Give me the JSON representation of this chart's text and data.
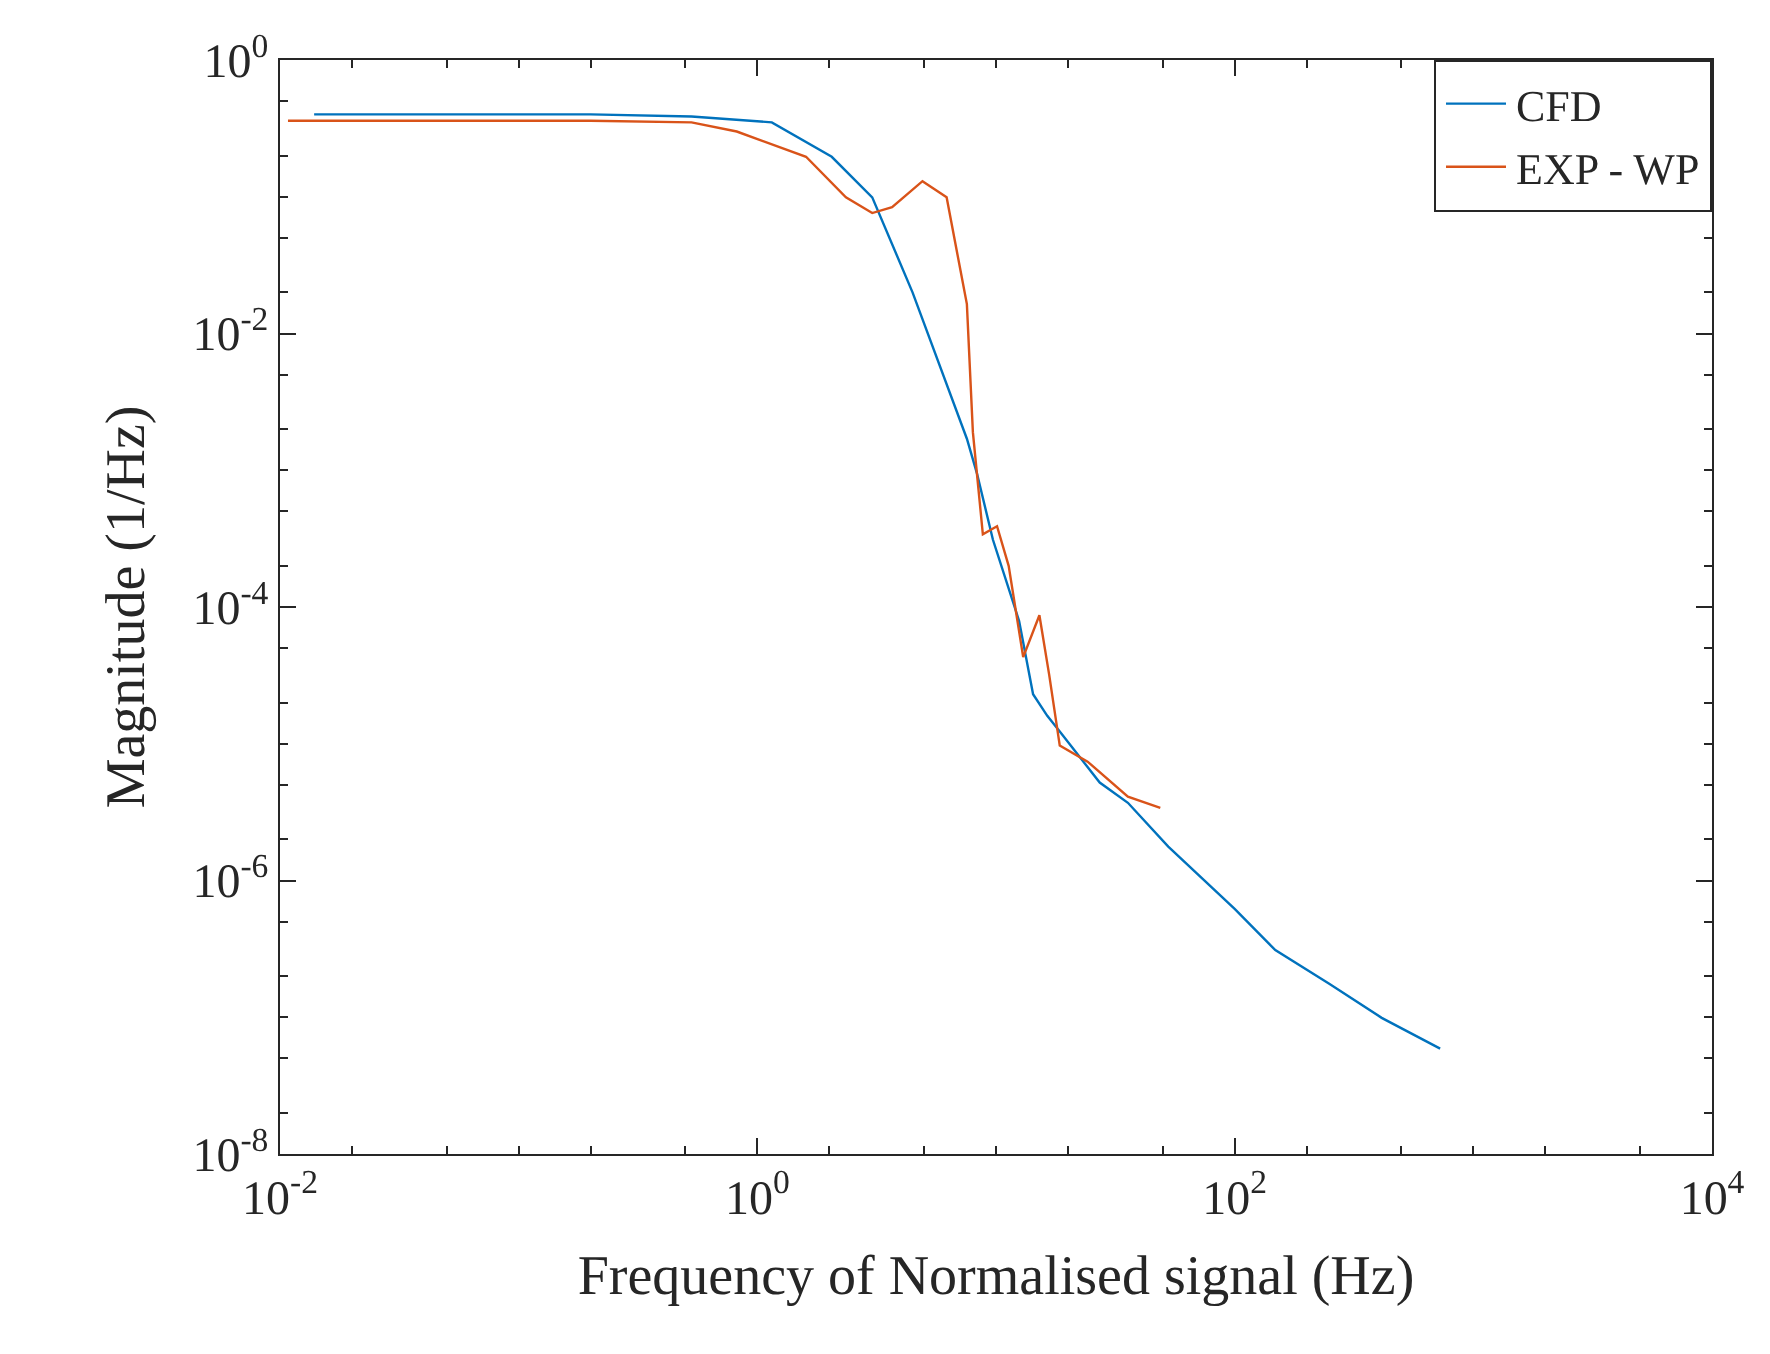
{
  "chart_data": {
    "type": "line",
    "xlabel": "Frequency of Normalised signal (Hz)",
    "ylabel": "Magnitude (1/Hz)",
    "log": "xy",
    "legend": "top right",
    "marker": "none",
    "line_style": "solid",
    "xlim": [
      0.01,
      10000
    ],
    "ylim": [
      1e-08,
      1
    ],
    "xticks": [
      {
        "value": 0.01,
        "label": "10$^{-2}$"
      },
      {
        "value": 1,
        "label": "10$^{0}$"
      },
      {
        "value": 100,
        "label": "10$^{2}$"
      },
      {
        "value": 10000,
        "label": "10$^{4}$"
      }
    ],
    "yticks": [
      {
        "value": 1e-08,
        "label": "10$^{-8}$"
      },
      {
        "value": 1e-06,
        "label": "10$^{-6}$"
      },
      {
        "value": 0.0001,
        "label": "10$^{-4}$"
      },
      {
        "value": 0.01,
        "label": "10$^{-2}$"
      },
      {
        "value": 1,
        "label": "10$^{0}$"
      }
    ],
    "series": [
      {
        "name": "CFD",
        "color": "#0072bd",
        "x": [
          0.0139,
          0.2,
          0.53,
          1.15,
          2.05,
          3.03,
          4.47,
          7.55,
          8.32,
          9.71,
          12.5,
          14.3,
          16.4,
          18.5,
          27.2,
          35.7,
          52.7,
          100,
          148,
          249,
          413,
          726
        ],
        "values": [
          0.4,
          0.4,
          0.386,
          0.35,
          0.196,
          0.099,
          0.02,
          0.0017,
          0.00095,
          0.00031,
          7.9e-05,
          2.3e-05,
          1.6e-05,
          1.23e-05,
          5.2e-06,
          3.7e-06,
          1.77e-06,
          6.2e-07,
          3.1e-07,
          1.76e-07,
          9.9e-08,
          5.9e-08
        ]
      },
      {
        "name": "EXP - WP",
        "color": "#d95319",
        "x": [
          0.0108,
          0.2,
          0.53,
          0.82,
          1.6,
          2.35,
          3.03,
          3.67,
          4.92,
          6.21,
          7.55,
          8.0,
          8.81,
          10.1,
          11.3,
          13.0,
          15.2,
          16.7,
          18.5,
          24.2,
          35.7,
          48.8
        ],
        "values": [
          0.36,
          0.36,
          0.35,
          0.3,
          0.196,
          0.099,
          0.076,
          0.084,
          0.13,
          0.099,
          0.0164,
          0.0019,
          0.00034,
          0.00039,
          0.0002,
          4.3e-05,
          8.7e-05,
          3.2e-05,
          9.7e-06,
          7.4e-06,
          4.1e-06,
          3.4e-06
        ]
      }
    ]
  }
}
